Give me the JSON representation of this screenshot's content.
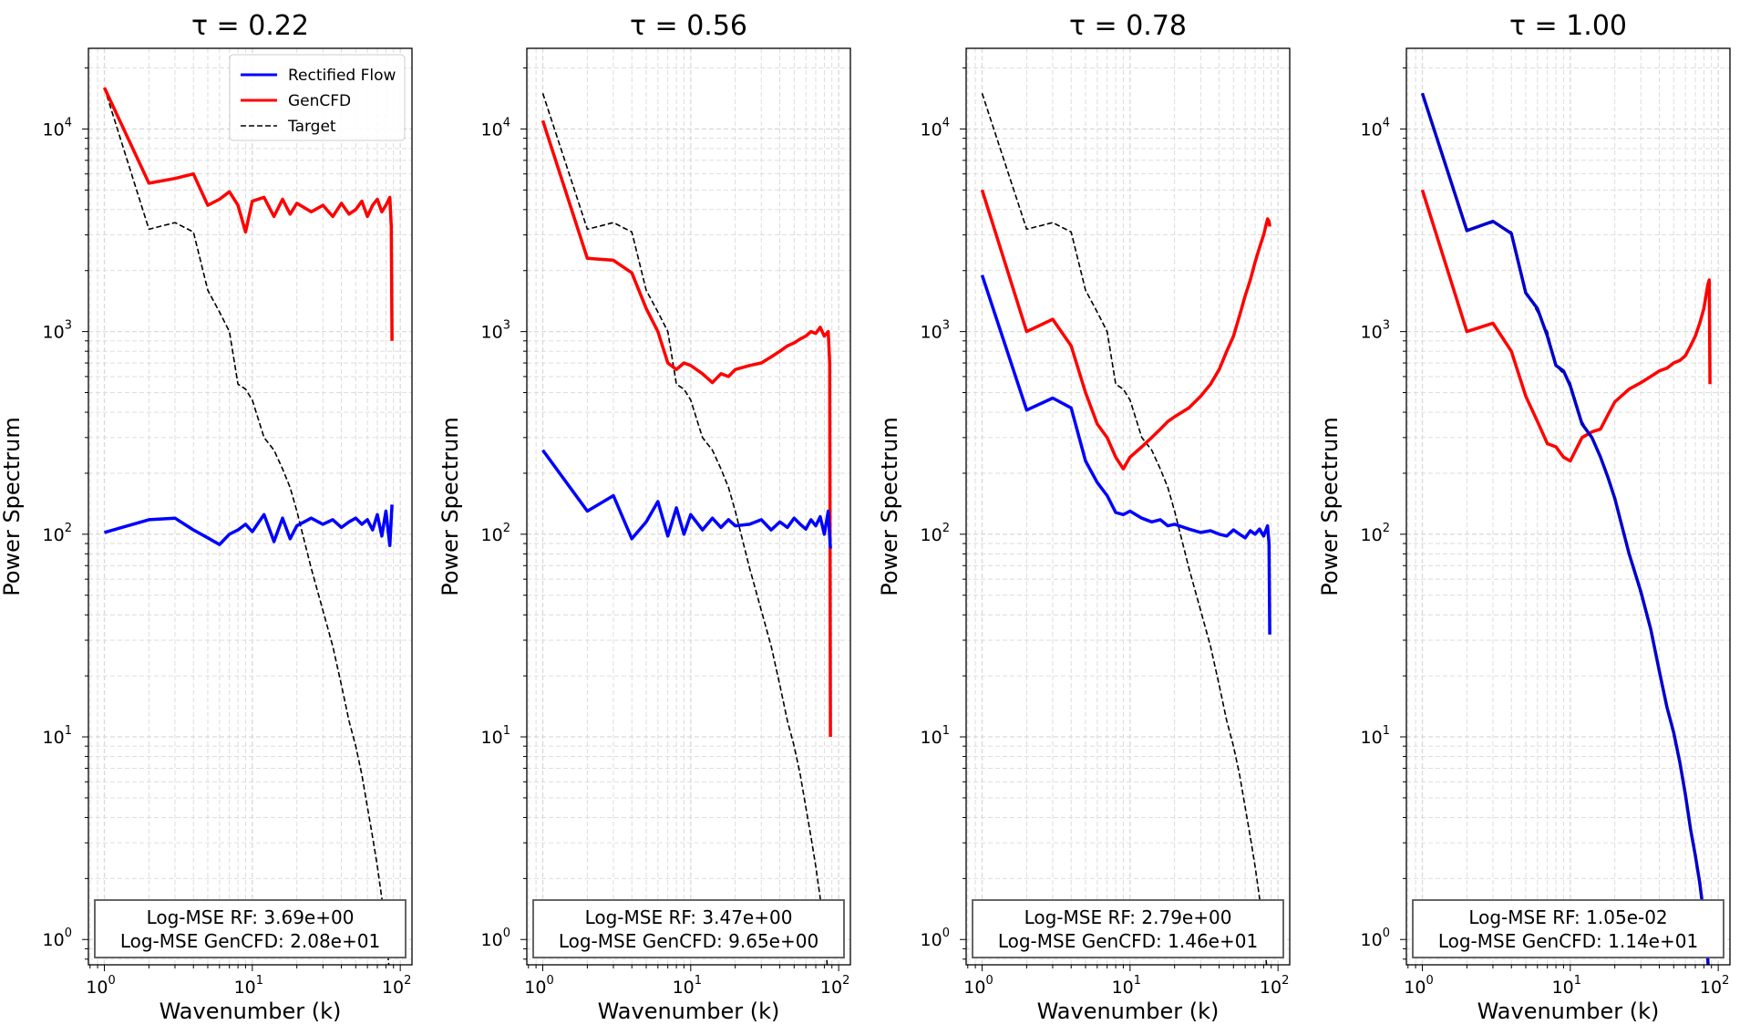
{
  "chart_data": [
    {
      "type": "line",
      "title": "τ = 0.22",
      "xlabel": "Wavenumber (k)",
      "ylabel": "Power Spectrum",
      "xscale": "log",
      "yscale": "log",
      "xlim": [
        0.78,
        120
      ],
      "ylim": [
        0.75,
        25000
      ],
      "xticks": [
        {
          "base": "10",
          "exp": "0"
        },
        {
          "base": "10",
          "exp": "1"
        },
        {
          "base": "10",
          "exp": "2"
        }
      ],
      "yticks": [
        {
          "base": "10",
          "exp": "0"
        },
        {
          "base": "10",
          "exp": "1"
        },
        {
          "base": "10",
          "exp": "2"
        },
        {
          "base": "10",
          "exp": "3"
        },
        {
          "base": "10",
          "exp": "4"
        }
      ],
      "grid": true,
      "legend": {
        "position": "top-right",
        "entries": [
          "Rectified Flow",
          "GenCFD",
          "Target"
        ]
      },
      "annotation": [
        "Log-MSE RF: 3.69e+00",
        "Log-MSE GenCFD: 2.08e+01"
      ],
      "series": [
        {
          "name": "Target",
          "color": "#000000",
          "style": "dashed",
          "x": [
            1,
            2,
            3,
            4,
            5,
            6,
            7,
            8,
            9,
            10,
            12,
            14,
            16,
            18,
            20,
            25,
            30,
            35,
            40,
            45,
            50,
            55,
            60,
            65,
            70,
            75,
            80,
            85,
            88
          ],
          "y": [
            16000,
            3200,
            3450,
            3100,
            1600,
            1250,
            1000,
            550,
            520,
            460,
            300,
            260,
            210,
            170,
            130,
            68,
            42,
            28,
            18,
            12,
            9,
            6.5,
            4.5,
            3.2,
            2.3,
            1.6,
            1.1,
            0.65,
            0.25
          ]
        },
        {
          "name": "GenCFD",
          "color": "#ff0000",
          "style": "solid",
          "x": [
            1,
            2,
            3,
            4,
            5,
            6,
            7,
            8,
            9,
            10,
            12,
            14,
            16,
            18,
            20,
            25,
            30,
            35,
            40,
            45,
            50,
            55,
            60,
            65,
            70,
            75,
            80,
            85,
            87,
            88
          ],
          "y": [
            16000,
            5400,
            5700,
            6000,
            4200,
            4500,
            4900,
            4200,
            3100,
            4400,
            4600,
            3700,
            4500,
            3800,
            4300,
            3900,
            4200,
            3700,
            4300,
            3800,
            4000,
            4400,
            3700,
            4200,
            4500,
            3900,
            4200,
            4600,
            3300,
            900
          ]
        },
        {
          "name": "Rectified Flow",
          "color": "#0000ff",
          "style": "solid",
          "x": [
            1,
            2,
            3,
            4,
            5,
            6,
            7,
            8,
            9,
            10,
            12,
            14,
            16,
            18,
            20,
            25,
            30,
            35,
            40,
            45,
            50,
            55,
            60,
            65,
            70,
            75,
            80,
            85,
            88
          ],
          "y": [
            102,
            118,
            120,
            105,
            96,
            89,
            100,
            105,
            112,
            103,
            125,
            92,
            120,
            95,
            110,
            120,
            112,
            118,
            108,
            115,
            120,
            112,
            118,
            105,
            125,
            98,
            130,
            88,
            140
          ]
        }
      ]
    },
    {
      "type": "line",
      "title": "τ = 0.56",
      "xlabel": "Wavenumber (k)",
      "ylabel": "Power Spectrum",
      "xscale": "log",
      "yscale": "log",
      "xlim": [
        0.78,
        120
      ],
      "ylim": [
        0.75,
        25000
      ],
      "xticks": [
        {
          "base": "10",
          "exp": "0"
        },
        {
          "base": "10",
          "exp": "1"
        },
        {
          "base": "10",
          "exp": "2"
        }
      ],
      "yticks": [
        {
          "base": "10",
          "exp": "0"
        },
        {
          "base": "10",
          "exp": "1"
        },
        {
          "base": "10",
          "exp": "2"
        },
        {
          "base": "10",
          "exp": "3"
        },
        {
          "base": "10",
          "exp": "4"
        }
      ],
      "grid": true,
      "annotation": [
        "Log-MSE RF: 3.47e+00",
        "Log-MSE GenCFD: 9.65e+00"
      ],
      "series": [
        {
          "name": "Target",
          "color": "#000000",
          "style": "dashed",
          "x": [
            1,
            2,
            3,
            4,
            5,
            6,
            7,
            8,
            9,
            10,
            12,
            14,
            16,
            18,
            20,
            25,
            30,
            35,
            40,
            45,
            50,
            55,
            60,
            65,
            70,
            75,
            80,
            85,
            88
          ],
          "y": [
            15000,
            3200,
            3450,
            3100,
            1600,
            1250,
            1000,
            550,
            520,
            460,
            300,
            260,
            210,
            170,
            130,
            68,
            42,
            28,
            18,
            12,
            9,
            6.5,
            4.5,
            3.2,
            2.3,
            1.6,
            1.1,
            0.65,
            0.25
          ]
        },
        {
          "name": "GenCFD",
          "color": "#ff0000",
          "style": "solid",
          "x": [
            1,
            2,
            3,
            4,
            5,
            6,
            7,
            8,
            9,
            10,
            12,
            14,
            16,
            18,
            20,
            25,
            30,
            35,
            40,
            45,
            50,
            55,
            60,
            65,
            70,
            75,
            80,
            85,
            87,
            88
          ],
          "y": [
            11000,
            2300,
            2250,
            1950,
            1300,
            1000,
            700,
            650,
            700,
            680,
            620,
            560,
            620,
            600,
            650,
            680,
            700,
            750,
            800,
            850,
            880,
            920,
            950,
            1000,
            980,
            1050,
            950,
            1000,
            700,
            10
          ]
        },
        {
          "name": "Rectified Flow",
          "color": "#0000ff",
          "style": "solid",
          "x": [
            1,
            2,
            3,
            4,
            5,
            6,
            7,
            8,
            9,
            10,
            12,
            14,
            16,
            18,
            20,
            25,
            30,
            35,
            40,
            45,
            50,
            55,
            60,
            65,
            70,
            75,
            80,
            85,
            88
          ],
          "y": [
            260,
            130,
            155,
            95,
            115,
            145,
            98,
            135,
            100,
            125,
            105,
            120,
            108,
            118,
            110,
            112,
            118,
            105,
            115,
            108,
            120,
            112,
            106,
            118,
            110,
            122,
            100,
            130,
            85
          ]
        }
      ]
    },
    {
      "type": "line",
      "title": "τ = 0.78",
      "xlabel": "Wavenumber (k)",
      "ylabel": "Power Spectrum",
      "xscale": "log",
      "yscale": "log",
      "xlim": [
        0.78,
        120
      ],
      "ylim": [
        0.75,
        25000
      ],
      "xticks": [
        {
          "base": "10",
          "exp": "0"
        },
        {
          "base": "10",
          "exp": "1"
        },
        {
          "base": "10",
          "exp": "2"
        }
      ],
      "yticks": [
        {
          "base": "10",
          "exp": "0"
        },
        {
          "base": "10",
          "exp": "1"
        },
        {
          "base": "10",
          "exp": "2"
        },
        {
          "base": "10",
          "exp": "3"
        },
        {
          "base": "10",
          "exp": "4"
        }
      ],
      "grid": true,
      "annotation": [
        "Log-MSE RF: 2.79e+00",
        "Log-MSE GenCFD: 1.46e+01"
      ],
      "series": [
        {
          "name": "Target",
          "color": "#000000",
          "style": "dashed",
          "x": [
            1,
            2,
            3,
            4,
            5,
            6,
            7,
            8,
            9,
            10,
            12,
            14,
            16,
            18,
            20,
            25,
            30,
            35,
            40,
            45,
            50,
            55,
            60,
            65,
            70,
            75,
            80,
            85,
            88
          ],
          "y": [
            15000,
            3200,
            3450,
            3100,
            1600,
            1250,
            1000,
            550,
            520,
            460,
            300,
            260,
            210,
            170,
            130,
            68,
            42,
            28,
            18,
            12,
            9,
            6.5,
            4.5,
            3.2,
            2.3,
            1.6,
            1.1,
            0.65,
            0.25
          ]
        },
        {
          "name": "GenCFD",
          "color": "#ff0000",
          "style": "solid",
          "x": [
            1,
            2,
            3,
            4,
            5,
            6,
            7,
            8,
            9,
            10,
            12,
            14,
            16,
            18,
            20,
            25,
            30,
            35,
            40,
            45,
            50,
            55,
            60,
            65,
            70,
            75,
            80,
            85,
            87,
            88
          ],
          "y": [
            5000,
            1000,
            1150,
            850,
            500,
            350,
            300,
            240,
            210,
            240,
            270,
            300,
            330,
            360,
            380,
            420,
            480,
            550,
            650,
            800,
            950,
            1200,
            1500,
            1800,
            2200,
            2600,
            3000,
            3600,
            3500,
            3300
          ]
        },
        {
          "name": "Rectified Flow",
          "color": "#0000ff",
          "style": "solid",
          "x": [
            1,
            2,
            3,
            4,
            5,
            6,
            7,
            8,
            9,
            10,
            12,
            14,
            16,
            18,
            20,
            25,
            30,
            35,
            40,
            45,
            50,
            55,
            60,
            65,
            70,
            75,
            80,
            85,
            87,
            88
          ],
          "y": [
            1900,
            410,
            470,
            420,
            230,
            180,
            155,
            128,
            125,
            130,
            120,
            115,
            118,
            110,
            112,
            106,
            102,
            104,
            100,
            98,
            105,
            100,
            96,
            104,
            100,
            106,
            98,
            110,
            90,
            32
          ]
        }
      ]
    },
    {
      "type": "line",
      "title": "τ = 1.00",
      "xlabel": "Wavenumber (k)",
      "ylabel": "Power Spectrum",
      "xscale": "log",
      "yscale": "log",
      "xlim": [
        0.78,
        120
      ],
      "ylim": [
        0.75,
        25000
      ],
      "xticks": [
        {
          "base": "10",
          "exp": "0"
        },
        {
          "base": "10",
          "exp": "1"
        },
        {
          "base": "10",
          "exp": "2"
        }
      ],
      "yticks": [
        {
          "base": "10",
          "exp": "0"
        },
        {
          "base": "10",
          "exp": "1"
        },
        {
          "base": "10",
          "exp": "2"
        },
        {
          "base": "10",
          "exp": "3"
        },
        {
          "base": "10",
          "exp": "4"
        }
      ],
      "grid": true,
      "annotation": [
        "Log-MSE RF: 1.05e-02",
        "Log-MSE GenCFD: 1.14e+01"
      ],
      "series": [
        {
          "name": "Target",
          "color": "#000000",
          "style": "dashed",
          "x": [
            1,
            2,
            3,
            4,
            5,
            6,
            7,
            8,
            9,
            10,
            12,
            14,
            16,
            18,
            20,
            25,
            30,
            35,
            40,
            45,
            50,
            55,
            60,
            65,
            70,
            75,
            80,
            85,
            88
          ],
          "y": [
            15000,
            3200,
            3450,
            3100,
            1600,
            1250,
            1000,
            680,
            620,
            560,
            360,
            300,
            240,
            190,
            150,
            80,
            50,
            33,
            21,
            14,
            10,
            7.2,
            5.0,
            3.5,
            2.6,
            1.8,
            1.2,
            0.75,
            0.5
          ]
        },
        {
          "name": "GenCFD",
          "color": "#ff0000",
          "style": "solid",
          "x": [
            1,
            2,
            3,
            4,
            5,
            6,
            7,
            8,
            9,
            10,
            12,
            14,
            16,
            18,
            20,
            25,
            30,
            35,
            40,
            45,
            50,
            55,
            60,
            65,
            70,
            75,
            80,
            85,
            87,
            88
          ],
          "y": [
            5000,
            1000,
            1100,
            800,
            480,
            360,
            280,
            270,
            240,
            230,
            300,
            320,
            330,
            390,
            450,
            520,
            560,
            600,
            640,
            660,
            700,
            720,
            760,
            850,
            950,
            1100,
            1300,
            1700,
            1800,
            550
          ]
        },
        {
          "name": "Rectified Flow",
          "color": "#0000cc",
          "style": "solid",
          "x": [
            1,
            2,
            3,
            4,
            5,
            6,
            7,
            8,
            9,
            10,
            12,
            14,
            16,
            18,
            20,
            25,
            30,
            35,
            40,
            45,
            50,
            55,
            60,
            65,
            70,
            75,
            80,
            85,
            88
          ],
          "y": [
            15000,
            3150,
            3500,
            3050,
            1550,
            1300,
            950,
            680,
            640,
            540,
            350,
            300,
            240,
            190,
            150,
            80,
            52,
            34,
            21,
            14,
            10.5,
            7.5,
            5.2,
            3.5,
            2.6,
            1.9,
            1.3,
            0.8,
            0.5
          ]
        }
      ]
    }
  ]
}
